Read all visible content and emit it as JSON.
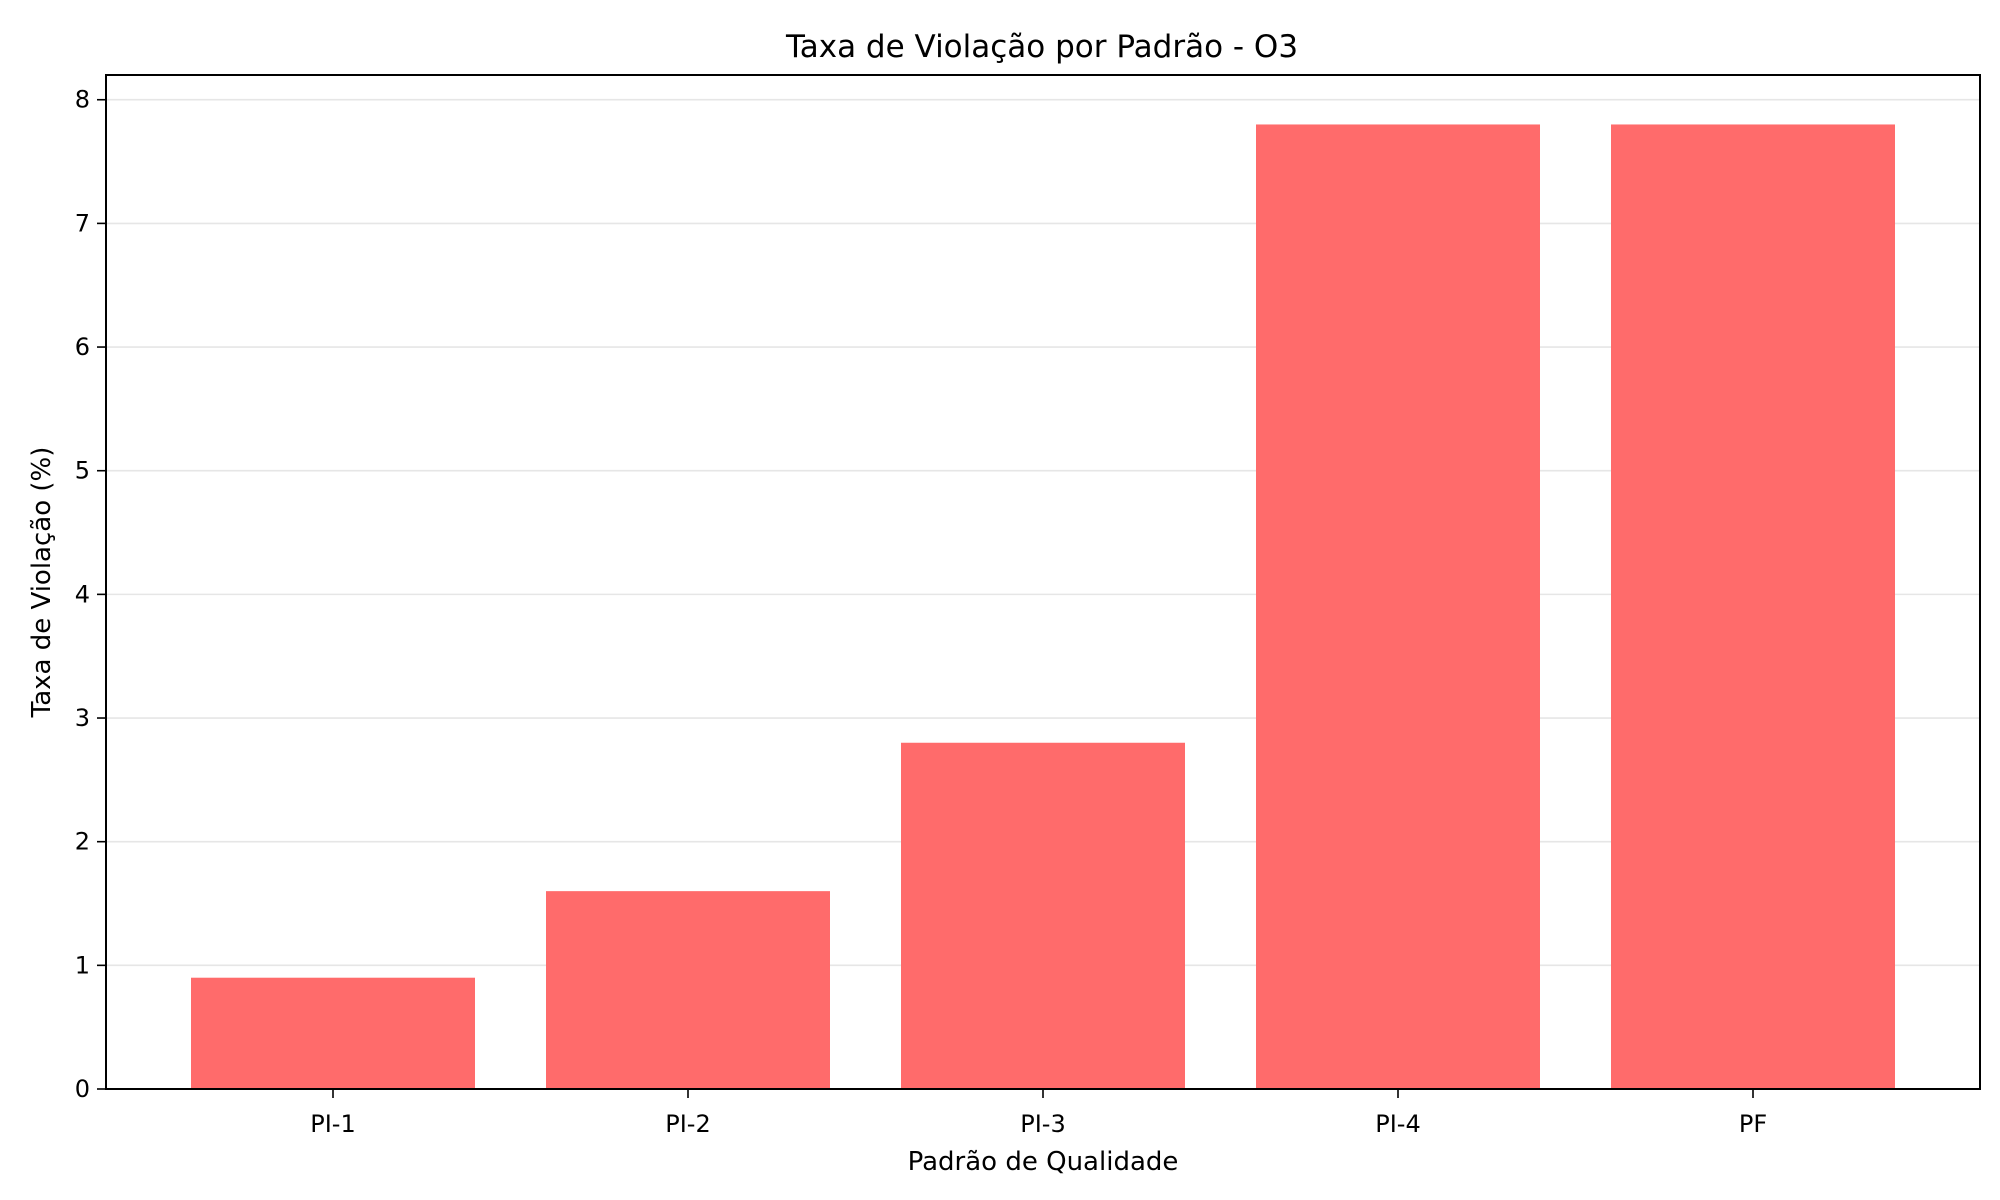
{
  "chart_data": {
    "type": "bar",
    "title": "Taxa de Violação por Padrão - O3",
    "xlabel": "Padrão de Qualidade",
    "ylabel": "Taxa de Violação (%)",
    "categories": [
      "PI-1",
      "PI-2",
      "PI-3",
      "PI-4",
      "PF"
    ],
    "values": [
      0.9,
      1.6,
      2.8,
      7.8,
      7.8
    ],
    "ylim": [
      0,
      8.2
    ],
    "yticks": [
      0,
      1,
      2,
      3,
      4,
      5,
      6,
      7,
      8
    ],
    "grid": "horizontal",
    "bar_color": "#ff6b6b",
    "legend": "none"
  }
}
